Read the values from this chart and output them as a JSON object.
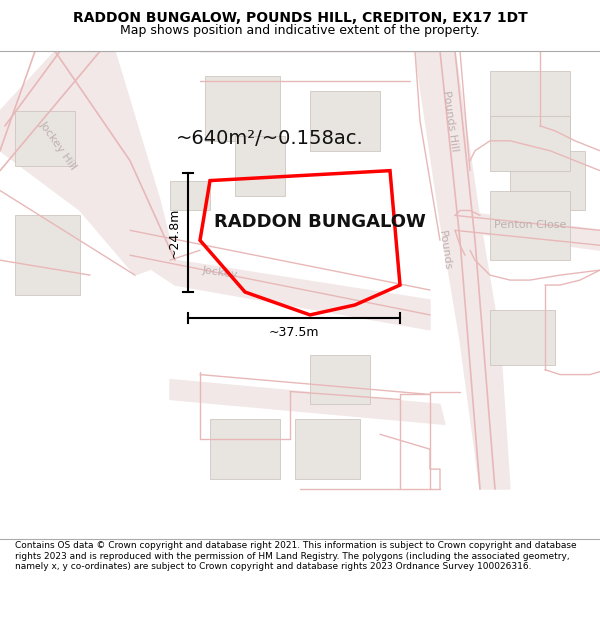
{
  "title": "RADDON BUNGALOW, POUNDS HILL, CREDITON, EX17 1DT",
  "subtitle": "Map shows position and indicative extent of the property.",
  "property_label": "RADDON BUNGALOW",
  "area_label": "~640m²/~0.158ac.",
  "dim_width_label": "~37.5m",
  "dim_height_label": "~24.8m",
  "footer": "Contains OS data © Crown copyright and database right 2021. This information is subject to Crown copyright and database rights 2023 and is reproduced with the permission of HM Land Registry. The polygons (including the associated geometry, namely x, y co-ordinates) are subject to Crown copyright and database rights 2023 Ordnance Survey 100026316.",
  "bg_color": "#ffffff",
  "building_color": "#e8e4e0",
  "building_stroke": "#c8c0b8",
  "road_fill": "#f5e8e8",
  "road_line": "#e8b8b8",
  "plot_color": "#ff0000",
  "street_label_color": "#c0b0b0",
  "title_color": "#000000",
  "footer_color": "#000000",
  "dim_color": "#000000",
  "title_fontsize": 10,
  "subtitle_fontsize": 9,
  "area_fontsize": 14,
  "label_fontsize": 13,
  "street_fontsize": 8,
  "dim_fontsize": 9,
  "footer_fontsize": 6.5
}
